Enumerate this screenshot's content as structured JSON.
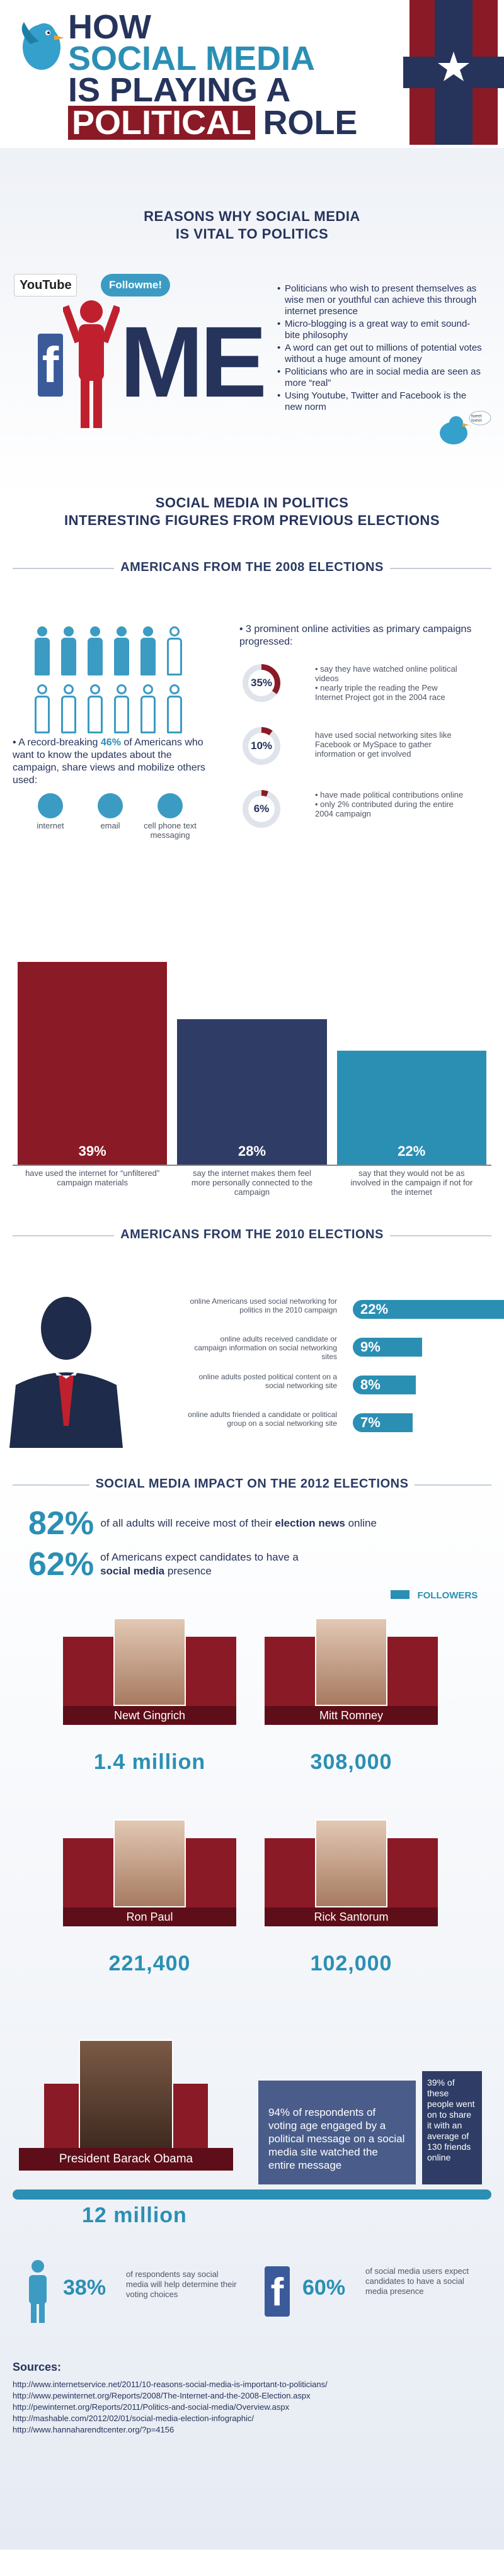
{
  "header": {
    "title_line1": "HOW",
    "title_line2": "SOCIAL MEDIA",
    "title_line3": "IS PLAYING A",
    "title_line4_a": "POLITICAL",
    "title_line4_b": "ROLE"
  },
  "reasons": {
    "heading_line1": "REASONS WHY SOCIAL MEDIA",
    "heading_line2": "IS VITAL TO POLITICS",
    "youtube_label": "YouTube",
    "followme_label": "Followme!",
    "me_label": "ME",
    "tweet_label": "tweet tweet",
    "bullets": [
      "Politicians who wish to present themselves as wise men or youthful can achieve this through internet presence",
      "Micro-blogging is a great way to emit sound-bite philosophy",
      "A word can get out to millions of potential votes without a huge amount of money",
      "Politicians who are in social media are seen as more “real”",
      "Using Youtube, Twitter and Facebook is the new norm"
    ]
  },
  "politics": {
    "heading_line1": "SOCIAL MEDIA IN POLITICS",
    "heading_line2": "INTERESTING FIGURES FROM PREVIOUS ELECTIONS"
  },
  "e2008": {
    "heading": "AMERICANS FROM THE 2008 ELECTIONS",
    "record_prefix": "• A record-breaking ",
    "record_pct": "46%",
    "record_suffix": " of Americans who want to know the updates about the campaign, share views and mobilize others used:",
    "media": [
      "internet",
      "email",
      "cell phone text messaging"
    ],
    "activities_intro": "• 3 prominent online activities as primary campaigns progressed:",
    "stats": [
      {
        "pct": "35%",
        "value": 35,
        "text1": "• say they have watched online political videos",
        "text2": "• nearly triple the reading the Pew Internet Project got in the 2004 race"
      },
      {
        "pct": "10%",
        "value": 10,
        "text1": "have used social networking sites like Facebook or MySpace to gather information or get involved",
        "text2": ""
      },
      {
        "pct": "6%",
        "value": 6,
        "text1": "• have made political contributions online",
        "text2": "• only 2% contributed during the entire 2004 campaign"
      }
    ]
  },
  "chart_data": {
    "type": "bar",
    "categories": [
      "have used the internet for “unfiltered” campaign materials",
      "say the internet makes them feel more personally connected to the campaign",
      "say that they would not be as involved in the campaign if not for the internet"
    ],
    "values": [
      39,
      28,
      22
    ],
    "labels": [
      "39%",
      "28%",
      "22%"
    ],
    "colors": [
      "#8a1a26",
      "#2f3d66",
      "#2b8fb4"
    ],
    "ylim": [
      0,
      40
    ]
  },
  "e2010": {
    "heading": "AMERICANS FROM THE 2010 ELECTIONS",
    "rows": [
      {
        "text": "online Americans used social networking for politics in the 2010 campaign",
        "pct": "22%",
        "value": 22
      },
      {
        "text": "online adults received candidate or campaign information on social networking sites",
        "pct": "9%",
        "value": 9
      },
      {
        "text": "online adults posted political content on a social networking site",
        "pct": "8%",
        "value": 8
      },
      {
        "text": "online adults friended a candidate or political group on a social networking site",
        "pct": "7%",
        "value": 7
      }
    ]
  },
  "e2012": {
    "heading": "SOCIAL MEDIA IMPACT ON THE 2012 ELECTIONS",
    "stat1_pct": "82%",
    "stat1_a": "of all adults will receive most of their ",
    "stat1_b": "election news",
    "stat1_c": " online",
    "stat2_pct": "62%",
    "stat2_a": "of Americans expect candidates to have a ",
    "stat2_b": "social media",
    "stat2_c": " presence",
    "followers_label": "FOLLOWERS",
    "candidates": [
      {
        "name": "Newt Gingrich",
        "followers": "1.4 million"
      },
      {
        "name": "Mitt Romney",
        "followers": "308,000"
      },
      {
        "name": "Ron Paul",
        "followers": "221,400"
      },
      {
        "name": "Rick Santorum",
        "followers": "102,000"
      }
    ],
    "obama_name": "President Barack Obama",
    "obama_followers": "12 million",
    "obama_box1": "94% of respondents of voting age engaged by a political message on a social media site watched the entire message",
    "obama_box2": "39% of these people went on to share it with an average of 130 friends online",
    "final1_pct": "38%",
    "final1_text": "of respondents say social media will help determine their voting choices",
    "final2_pct": "60%",
    "final2_text": "of social media users expect candidates to have a social media presence"
  },
  "sources": {
    "heading": "Sources:",
    "links": [
      "http://www.internetservice.net/2011/10-reasons-social-media-is-important-to-politicians/",
      "http://www.pewinternet.org/Reports/2008/The-Internet-and-the-2008-Election.aspx",
      "http://pewinternet.org/Reports/2011/Politics-and-social-media/Overview.aspx",
      "http://mashable.com/2012/02/01/social-media-election-infographic/",
      "http://www.hannaharendtcenter.org/?p=4156"
    ]
  }
}
